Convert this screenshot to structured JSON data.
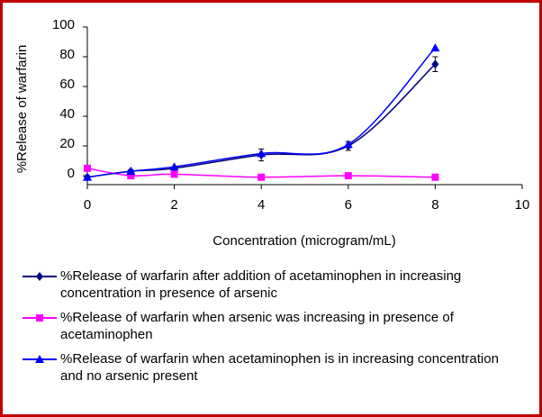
{
  "chart_data": {
    "type": "line",
    "y_label": "%Release of warfarin",
    "x_label": "Concentration (microgram/mL)",
    "xlim": [
      0,
      10
    ],
    "xticks": [
      0,
      2,
      4,
      6,
      8,
      10
    ],
    "ylim": [
      -6,
      100
    ],
    "yticks": [
      0,
      20,
      40,
      60,
      80,
      100
    ],
    "x": [
      0,
      1,
      2,
      4,
      6,
      8
    ],
    "series": [
      {
        "name": "%Release of warfarin after addition of acetaminophen in increasing concentration in presence of arsenic",
        "color": "#000080",
        "marker": "diamond",
        "values": [
          -1,
          3,
          5,
          14,
          20,
          75
        ],
        "errors": [
          1,
          1,
          1,
          4,
          3,
          5
        ]
      },
      {
        "name": "%Release of warfarin when arsenic was increasing in presence of  acetaminophen",
        "color": "#ff00ff",
        "marker": "square",
        "values": [
          5,
          0,
          1,
          -1,
          0,
          -1
        ]
      },
      {
        "name": "%Release of warfarin when acetaminophen is in increasing concentration and no arsenic present",
        "color": "#0000ff",
        "marker": "triangle",
        "values": [
          -1,
          3,
          6,
          15,
          21,
          86
        ]
      }
    ]
  }
}
